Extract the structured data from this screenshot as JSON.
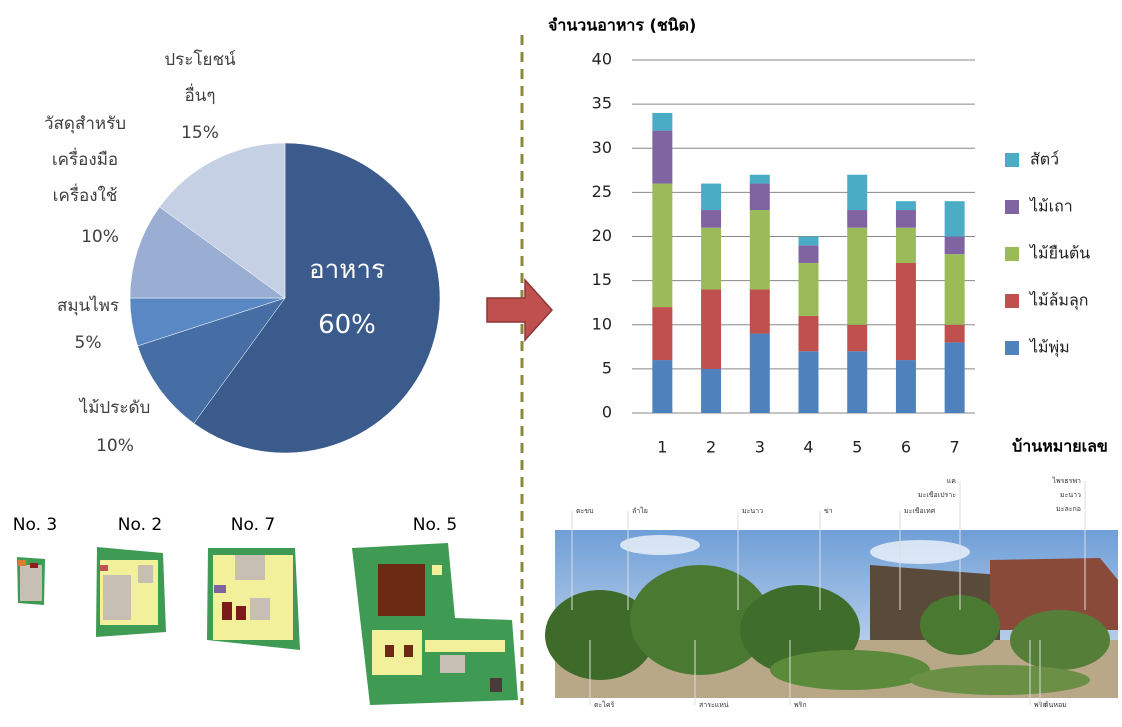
{
  "chart_data": [
    {
      "type": "pie",
      "categories": [
        "อาหาร",
        "ไม้ประดับ",
        "สมุนไพร",
        "วัสดุสำหรับ\nเครื่องมือ\nเครื่องใช้",
        "ประโยชน์\nอื่นๆ"
      ],
      "values": [
        60,
        10,
        5,
        10,
        15
      ],
      "value_labels": [
        "60%",
        "10%",
        "5%",
        "10%",
        "15%"
      ],
      "colors": [
        "#3a5b8b",
        "#476da5",
        "#5a88c4",
        "#9aaed3",
        "#c5d0e5"
      ]
    },
    {
      "type": "stacked_bar",
      "title": "จำนวนอาหาร (ชนิด)",
      "xlabel": "บ้านหมายเลข",
      "categories": [
        "1",
        "2",
        "3",
        "4",
        "5",
        "6",
        "7"
      ],
      "series": [
        {
          "name": "ไม้พุ่ม",
          "color": "#4f81bd",
          "values": [
            6,
            5,
            9,
            7,
            7,
            6,
            8
          ]
        },
        {
          "name": "ไม้ล้มลุก",
          "color": "#c0504d",
          "values": [
            6,
            9,
            5,
            4,
            3,
            11,
            2
          ]
        },
        {
          "name": "ไม้ยืนต้น",
          "color": "#9bbb59",
          "values": [
            14,
            7,
            9,
            6,
            11,
            4,
            8
          ]
        },
        {
          "name": "ไม้เถา",
          "color": "#8064a2",
          "values": [
            6,
            2,
            3,
            2,
            2,
            2,
            2
          ]
        },
        {
          "name": "สัตว์",
          "color": "#4bacc6",
          "values": [
            2,
            3,
            1,
            1,
            4,
            1,
            4
          ]
        }
      ],
      "ylim": [
        0,
        40
      ],
      "yticks": [
        0,
        5,
        10,
        15,
        20,
        25,
        30,
        35,
        40
      ],
      "grid": true,
      "legend": "right"
    }
  ],
  "plans": [
    "No. 3",
    "No. 2",
    "No. 7",
    "No. 5"
  ],
  "photo": {
    "labels": [
      "ตะขบ",
      "ลำไย",
      "มะนาว",
      "ข่า",
      "มะเขือเทศ",
      "แค",
      "มะเขือเปราะ",
      "ไพรธรพา",
      "มะนาว",
      "มะละกอ",
      "ตะไคร้",
      "สาระแหน่",
      "พริก",
      "พริก",
      "ต้นหอม"
    ]
  }
}
